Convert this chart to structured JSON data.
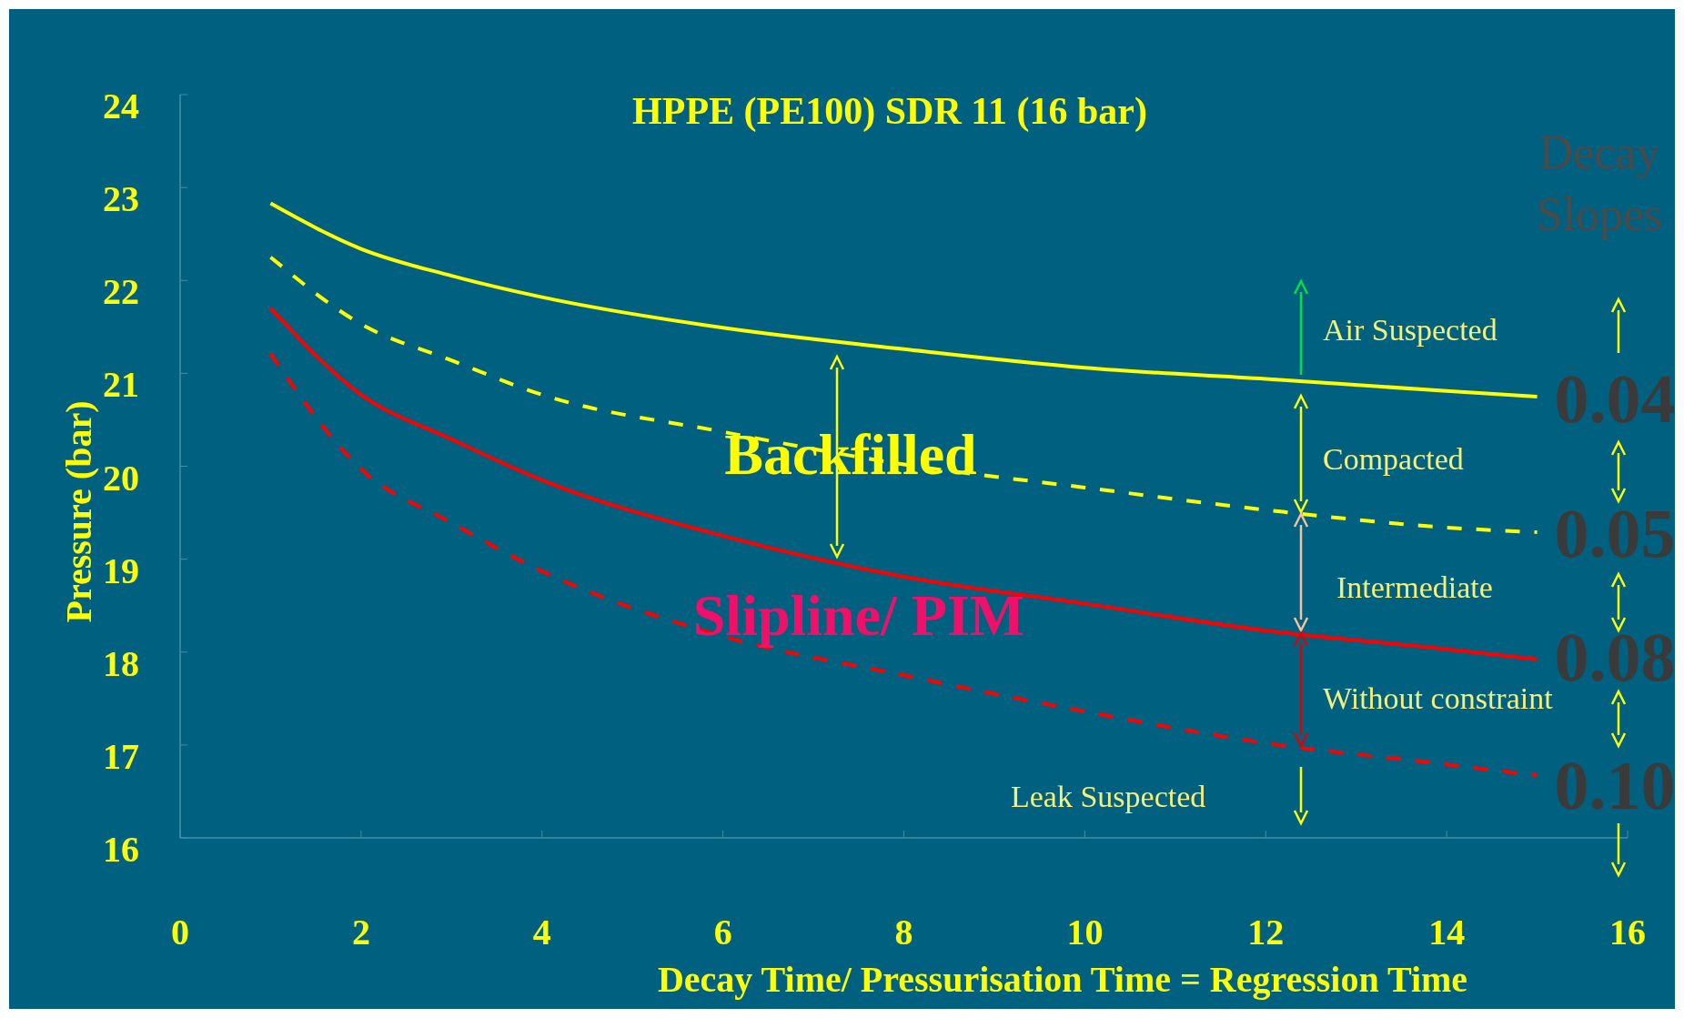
{
  "chart_data": {
    "type": "line",
    "title": "HPPE (PE100) SDR 11 (16 bar)",
    "xlabel": "Decay Time/ Pressurisation Time = Regression Time",
    "ylabel": "Pressure (bar)",
    "x": [
      1,
      2,
      3,
      4,
      6,
      8,
      10,
      12,
      14,
      15
    ],
    "series": [
      {
        "color": "#ffff00",
        "line_style": "solid",
        "values": [
          22.83,
          22.34,
          22.05,
          21.82,
          21.49,
          21.26,
          21.06,
          20.94,
          20.81,
          20.75
        ]
      },
      {
        "color": "#ffff00",
        "line_style": "dashed",
        "values": [
          22.25,
          21.53,
          21.14,
          20.77,
          20.37,
          20.02,
          19.77,
          19.53,
          19.34,
          19.29
        ]
      },
      {
        "color": "#ff0000",
        "line_style": "solid",
        "values": [
          21.7,
          20.77,
          20.29,
          19.85,
          19.25,
          18.81,
          18.52,
          18.23,
          18.03,
          17.92
        ]
      },
      {
        "color": "#ff0000",
        "line_style": "dashed",
        "values": [
          21.21,
          19.97,
          19.39,
          18.87,
          18.17,
          17.75,
          17.36,
          17.02,
          16.79,
          16.67
        ]
      }
    ],
    "xlim": [
      0,
      16
    ],
    "ylim": [
      16,
      24
    ],
    "xticks": [
      0,
      2,
      4,
      6,
      8,
      10,
      12,
      14,
      16
    ],
    "yticks": [
      16,
      17,
      18,
      19,
      20,
      21,
      22,
      23,
      24
    ],
    "marker": "none",
    "annotations": [
      "Backfilled",
      "Slipline/ PIM",
      "Decay Slopes",
      "0.04",
      "0.05",
      "0.08",
      "0.10",
      "Air Suspected",
      "Compacted",
      "Intermediate",
      "Without constraint",
      "Leak Suspected"
    ]
  }
}
